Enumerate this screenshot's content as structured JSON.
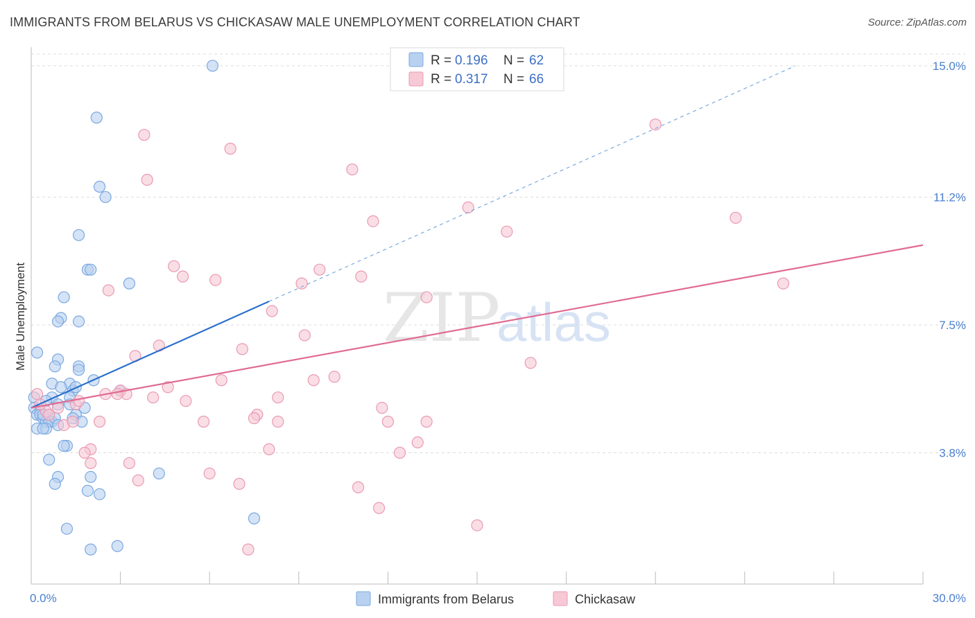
{
  "header": {
    "title": "IMMIGRANTS FROM BELARUS VS CHICKASAW MALE UNEMPLOYMENT CORRELATION CHART",
    "source": "Source: ZipAtlas.com"
  },
  "watermark": {
    "zip": "ZIP",
    "atlas": "atlas"
  },
  "chart_data": {
    "type": "scatter",
    "title": "IMMIGRANTS FROM BELARUS VS CHICKASAW MALE UNEMPLOYMENT CORRELATION CHART",
    "xlabel": "",
    "ylabel": "Male Unemployment",
    "xlim": [
      0,
      30
    ],
    "ylim": [
      0,
      15.5
    ],
    "x_tick_labels": [
      {
        "value": 0,
        "label": "0.0%"
      },
      {
        "value": 30,
        "label": "30.0%"
      }
    ],
    "y_tick_labels": [
      {
        "value": 3.8,
        "label": "3.8%"
      },
      {
        "value": 7.5,
        "label": "7.5%"
      },
      {
        "value": 11.2,
        "label": "11.2%"
      },
      {
        "value": 15.0,
        "label": "15.0%"
      }
    ],
    "grid": "horizontal-dashed",
    "legend": {
      "position": "top-center",
      "entries": [
        {
          "series": "Immigrants from Belarus",
          "r_label": "R = ",
          "r": "0.196",
          "n_label": "N = ",
          "n": "62"
        },
        {
          "series": "Chickasaw",
          "r_label": "R = ",
          "r": "0.317",
          "n_label": "N = ",
          "n": "66"
        }
      ]
    },
    "series": [
      {
        "name": "Immigrants from Belarus",
        "color": "#7aa8e0",
        "fill": "#b9d1f0",
        "line_color": "#2a6fcc",
        "trend": {
          "x_solid": [
            0,
            8.0
          ],
          "x_dashed": [
            8.0,
            25.7
          ],
          "y_at_0": 5.1,
          "slope": 0.385
        },
        "points": [
          [
            6.1,
            15.0
          ],
          [
            2.2,
            13.5
          ],
          [
            2.3,
            11.5
          ],
          [
            2.5,
            11.2
          ],
          [
            1.6,
            10.1
          ],
          [
            1.9,
            9.1
          ],
          [
            2.0,
            9.1
          ],
          [
            3.3,
            8.7
          ],
          [
            1.1,
            8.3
          ],
          [
            1.0,
            7.7
          ],
          [
            0.9,
            7.6
          ],
          [
            1.6,
            7.6
          ],
          [
            0.2,
            6.7
          ],
          [
            0.9,
            6.5
          ],
          [
            0.8,
            6.3
          ],
          [
            1.6,
            6.3
          ],
          [
            1.6,
            6.2
          ],
          [
            2.1,
            5.9
          ],
          [
            0.7,
            5.8
          ],
          [
            1.3,
            5.8
          ],
          [
            1.0,
            5.7
          ],
          [
            1.4,
            5.6
          ],
          [
            1.5,
            5.7
          ],
          [
            3.0,
            5.6
          ],
          [
            0.1,
            5.4
          ],
          [
            0.7,
            5.4
          ],
          [
            1.3,
            5.4
          ],
          [
            0.5,
            5.3
          ],
          [
            0.9,
            5.2
          ],
          [
            1.3,
            5.2
          ],
          [
            0.1,
            5.1
          ],
          [
            0.3,
            5.0
          ],
          [
            1.8,
            5.1
          ],
          [
            0.2,
            4.9
          ],
          [
            0.3,
            4.9
          ],
          [
            0.6,
            4.9
          ],
          [
            1.5,
            4.9
          ],
          [
            0.4,
            4.8
          ],
          [
            0.5,
            4.7
          ],
          [
            0.7,
            4.7
          ],
          [
            0.6,
            4.7
          ],
          [
            0.8,
            4.8
          ],
          [
            1.4,
            4.8
          ],
          [
            1.7,
            4.7
          ],
          [
            0.9,
            4.6
          ],
          [
            0.2,
            4.5
          ],
          [
            0.5,
            4.5
          ],
          [
            0.4,
            4.5
          ],
          [
            1.2,
            4.0
          ],
          [
            1.1,
            4.0
          ],
          [
            0.6,
            3.6
          ],
          [
            0.9,
            3.1
          ],
          [
            0.8,
            2.9
          ],
          [
            2.0,
            3.1
          ],
          [
            4.3,
            3.2
          ],
          [
            1.9,
            2.7
          ],
          [
            2.3,
            2.6
          ],
          [
            7.5,
            1.9
          ],
          [
            1.2,
            1.6
          ],
          [
            2.0,
            1.0
          ],
          [
            2.9,
            1.1
          ],
          [
            0.4,
            4.9
          ]
        ]
      },
      {
        "name": "Chickasaw",
        "color": "#e99ab3",
        "fill": "#f7c8d6",
        "line_color": "#e06b93",
        "trend": {
          "x_solid": [
            0,
            30
          ],
          "y_at_0": 5.1,
          "slope": 0.157
        },
        "points": [
          [
            0.2,
            5.5
          ],
          [
            3.8,
            13.0
          ],
          [
            6.7,
            12.6
          ],
          [
            3.9,
            11.7
          ],
          [
            10.8,
            12.0
          ],
          [
            21.0,
            13.3
          ],
          [
            14.7,
            10.9
          ],
          [
            11.5,
            10.5
          ],
          [
            23.7,
            10.6
          ],
          [
            16.0,
            10.2
          ],
          [
            4.8,
            9.2
          ],
          [
            5.1,
            8.9
          ],
          [
            6.2,
            8.8
          ],
          [
            9.7,
            9.1
          ],
          [
            11.1,
            8.9
          ],
          [
            9.1,
            8.7
          ],
          [
            13.3,
            8.3
          ],
          [
            25.3,
            8.7
          ],
          [
            2.6,
            8.5
          ],
          [
            8.1,
            7.9
          ],
          [
            9.2,
            7.2
          ],
          [
            4.3,
            6.9
          ],
          [
            7.1,
            6.8
          ],
          [
            3.5,
            6.6
          ],
          [
            16.8,
            6.4
          ],
          [
            10.2,
            6.0
          ],
          [
            9.5,
            5.9
          ],
          [
            6.4,
            5.9
          ],
          [
            4.6,
            5.7
          ],
          [
            2.5,
            5.5
          ],
          [
            3.0,
            5.6
          ],
          [
            3.2,
            5.5
          ],
          [
            4.1,
            5.4
          ],
          [
            5.2,
            5.3
          ],
          [
            8.3,
            5.4
          ],
          [
            1.5,
            5.2
          ],
          [
            0.5,
            5.0
          ],
          [
            11.8,
            5.1
          ],
          [
            7.6,
            4.9
          ],
          [
            7.5,
            4.8
          ],
          [
            5.8,
            4.7
          ],
          [
            8.3,
            4.7
          ],
          [
            12.0,
            4.7
          ],
          [
            13.3,
            4.7
          ],
          [
            2.3,
            4.7
          ],
          [
            1.1,
            4.6
          ],
          [
            1.4,
            4.7
          ],
          [
            13.0,
            4.1
          ],
          [
            2.0,
            3.9
          ],
          [
            12.4,
            3.8
          ],
          [
            8.0,
            3.9
          ],
          [
            1.8,
            3.8
          ],
          [
            2.0,
            3.5
          ],
          [
            3.3,
            3.5
          ],
          [
            3.6,
            3.0
          ],
          [
            6.0,
            3.2
          ],
          [
            7.0,
            2.9
          ],
          [
            11.0,
            2.8
          ],
          [
            11.7,
            2.2
          ],
          [
            15.0,
            1.7
          ],
          [
            7.3,
            1.0
          ],
          [
            0.6,
            4.9
          ],
          [
            0.9,
            5.1
          ],
          [
            1.6,
            5.3
          ],
          [
            0.3,
            5.2
          ],
          [
            2.9,
            5.5
          ]
        ]
      }
    ]
  },
  "bottom_legend": [
    {
      "label": "Immigrants from Belarus"
    },
    {
      "label": "Chickasaw"
    }
  ]
}
